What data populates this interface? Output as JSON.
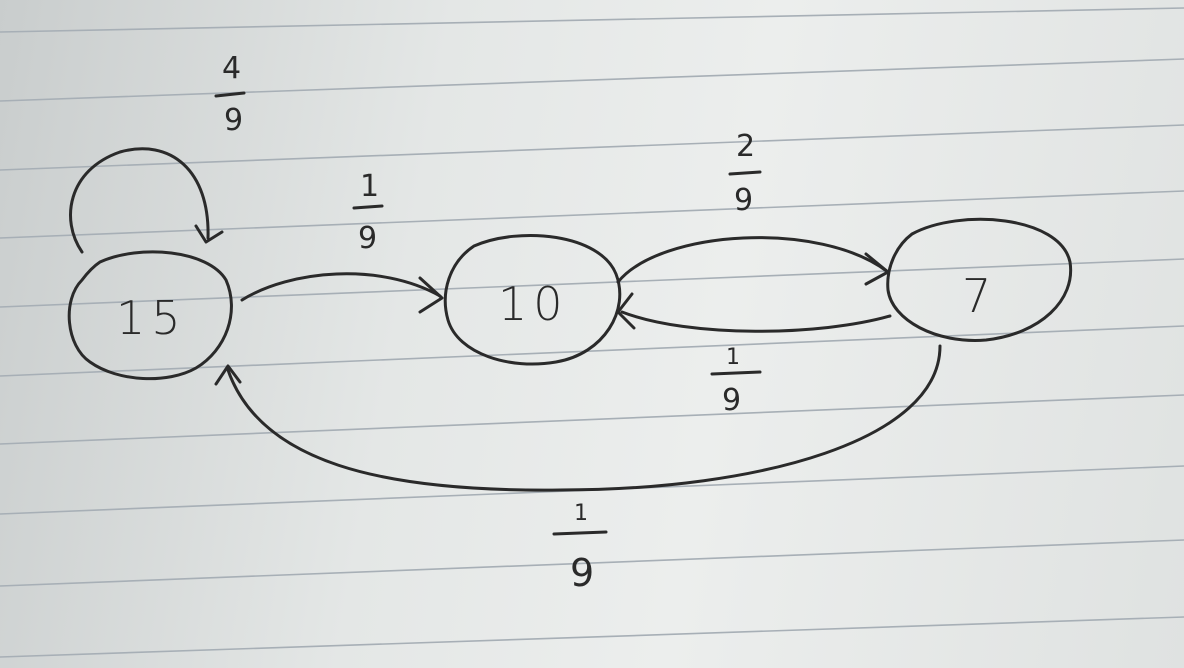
{
  "diagram": {
    "nodes": [
      {
        "id": "n15",
        "label": "15"
      },
      {
        "id": "n10",
        "label": "10"
      },
      {
        "id": "n7",
        "label": "7"
      }
    ],
    "edges": [
      {
        "id": "e15_15",
        "from": "15",
        "to": "15",
        "numerator": "4",
        "denominator": "9"
      },
      {
        "id": "e15_10",
        "from": "15",
        "to": "10",
        "numerator": "1",
        "denominator": "9"
      },
      {
        "id": "e10_7",
        "from": "10",
        "to": "7",
        "numerator": "2",
        "denominator": "9"
      },
      {
        "id": "e7_10",
        "from": "7",
        "to": "10",
        "numerator": "1",
        "denominator": "9"
      },
      {
        "id": "e7_15",
        "from": "7",
        "to": "15",
        "numerator": "1",
        "denominator": "9"
      }
    ]
  },
  "colors": {
    "ink": "#2a2a2a",
    "paper": "#e6e9e8",
    "rule": "#a7afb6"
  }
}
